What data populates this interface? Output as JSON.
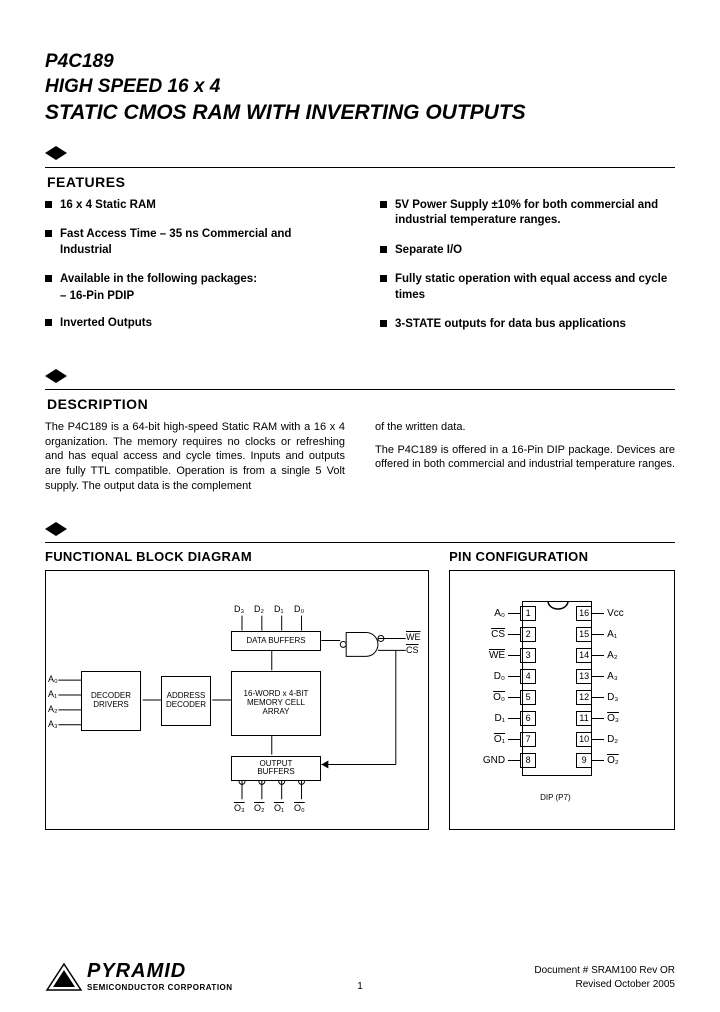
{
  "title": {
    "part_number": "P4C189",
    "line1": "HIGH SPEED 16 x 4",
    "line2": "STATIC CMOS RAM WITH INVERTING OUTPUTS"
  },
  "sections": {
    "features": "FEATURES",
    "description": "DESCRIPTION",
    "fbd": "FUNCTIONAL BLOCK DIAGRAM",
    "pincfg": "PIN CONFIGURATION"
  },
  "features_left": [
    "16 x 4 Static RAM",
    "Fast Access Time – 35 ns Commercial and Industrial",
    "Available in the following packages:",
    "Inverted Outputs"
  ],
  "features_left_sub": "– 16-Pin PDIP",
  "features_right": [
    "5V Power Supply ±10% for both commercial and industrial  temperature ranges.",
    "Separate  I/O",
    "Fully static operation with equal access and cycle times",
    "3-STATE outputs for data bus applications"
  ],
  "description_col1": "The P4C189 is a 64-bit high-speed Static RAM with a 16 x 4 organization.  The memory requires no clocks or refreshing and has equal access and cycle times. Inputs and outputs are fully TTL compatible. Operation is from a single 5 Volt supply.  The output data is the complement",
  "description_col2_p1": "of the written data.",
  "description_col2_p2": "The P4C189 is offered in a 16-Pin DIP package.  Devices are offered in both commercial and industrial temperature ranges.",
  "fbd": {
    "blocks": {
      "decoder_drivers": "DECODER\nDRIVERS",
      "address_decoder": "ADDRESS\nDECODER",
      "memory_array": "16-WORD x 4-BIT\nMEMORY CELL\nARRAY",
      "data_buffers": "DATA BUFFERS",
      "output_buffers": "OUTPUT\nBUFFERS"
    },
    "inputs_a": [
      "A₀",
      "A₁",
      "A₂",
      "A₃"
    ],
    "inputs_d": [
      "D₃",
      "D₂",
      "D₁",
      "D₀"
    ],
    "outputs_o": [
      "O₃",
      "O₂",
      "O₁",
      "O₀"
    ],
    "ctrl": {
      "we": "WE",
      "cs": "CS"
    }
  },
  "pin_config": {
    "left_pins": [
      {
        "num": "1",
        "label": "A₀",
        "over": false
      },
      {
        "num": "2",
        "label": "CS",
        "over": true
      },
      {
        "num": "3",
        "label": "WE",
        "over": true
      },
      {
        "num": "4",
        "label": "D₀",
        "over": false
      },
      {
        "num": "5",
        "label": "O₀",
        "over": true
      },
      {
        "num": "6",
        "label": "D₁",
        "over": false
      },
      {
        "num": "7",
        "label": "O₁",
        "over": true
      },
      {
        "num": "8",
        "label": "GND",
        "over": false
      }
    ],
    "right_pins": [
      {
        "num": "16",
        "label": "Vcc",
        "over": false
      },
      {
        "num": "15",
        "label": "A₁",
        "over": false
      },
      {
        "num": "14",
        "label": "A₂",
        "over": false
      },
      {
        "num": "13",
        "label": "A₃",
        "over": false
      },
      {
        "num": "12",
        "label": "D₃",
        "over": false
      },
      {
        "num": "11",
        "label": "O₃",
        "over": true
      },
      {
        "num": "10",
        "label": "D₂",
        "over": false
      },
      {
        "num": "9",
        "label": "O₂",
        "over": true
      }
    ],
    "caption": "DIP (P7)"
  },
  "footer": {
    "brand": "PYRAMID",
    "brand_sub": "SEMICONDUCTOR CORPORATION",
    "doc": "Document # SRAM100 Rev OR",
    "revised": "Revised October 2005",
    "page": "1"
  }
}
